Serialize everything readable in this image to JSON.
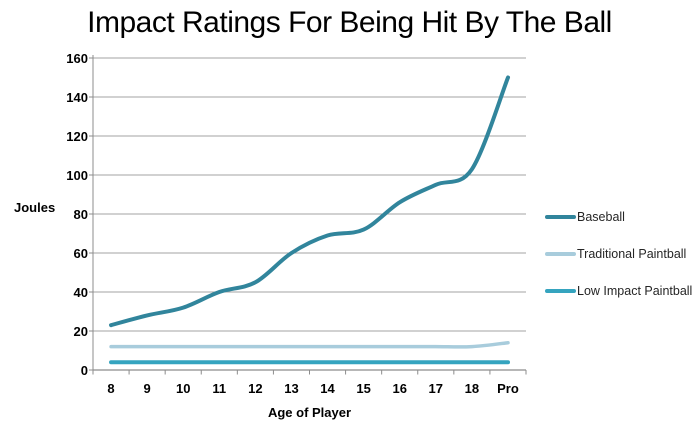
{
  "title": "Impact Ratings For Being Hit By The Ball",
  "chart_data": {
    "type": "line",
    "title": "Impact Ratings For Being Hit By The Ball",
    "xlabel": "Age of Player",
    "ylabel": "Joules",
    "categories": [
      "8",
      "9",
      "10",
      "11",
      "12",
      "13",
      "14",
      "15",
      "16",
      "17",
      "18",
      "Pro"
    ],
    "series": [
      {
        "name": "Baseball",
        "color": "#31859C",
        "width": 4,
        "values": [
          23,
          28,
          32,
          40,
          45,
          60,
          69,
          72,
          86,
          95,
          103,
          150
        ]
      },
      {
        "name": "Traditional Paintball",
        "color": "#A8CCDC",
        "width": 3.5,
        "values": [
          12,
          12,
          12,
          12,
          12,
          12,
          12,
          12,
          12,
          12,
          12,
          14
        ]
      },
      {
        "name": "Low Impact Paintball",
        "color": "#35A4BF",
        "width": 4,
        "values": [
          4,
          4,
          4,
          4,
          4,
          4,
          4,
          4,
          4,
          4,
          4,
          4
        ]
      }
    ],
    "ylim": [
      0,
      160
    ],
    "yticks": [
      0,
      20,
      40,
      60,
      80,
      100,
      120,
      140,
      160
    ],
    "grid": "horizontal",
    "smooth": true,
    "legend_position": "right",
    "colors": {
      "gridline": "#A3A3A3",
      "axis": "#8C8C8C",
      "text": "#000000",
      "legend_text": "#262626",
      "background": "#FFFFFF"
    }
  }
}
